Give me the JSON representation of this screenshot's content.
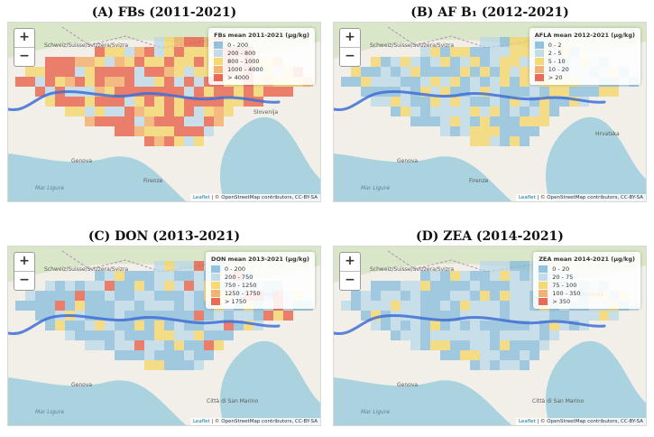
{
  "colors": {
    "water": "#aad3df",
    "land": "#f2efe9",
    "land_alt": "#e9e6d8",
    "forest": "#cfe3b8",
    "river": "#3e6fd6",
    "border": "#b08fb8",
    "blue": "#7fb8d9",
    "lightblue": "#b7d7e8",
    "yellow": "#f4d35e",
    "orange": "#f2a65a",
    "red": "#e8503a"
  },
  "zoom": {
    "in": "+",
    "out": "−"
  },
  "attribution": {
    "leaflet": "Leaflet",
    "rest": " | © OpenStreetMap contributors, CC-BY-SA"
  },
  "places": {
    "schweiz": "Schweiz/Suisse/Svizzera/Svizra",
    "slovenija": "Slovenija",
    "hrvatska": "Hrvatska",
    "trieste": "Trieste",
    "genova": "Genova",
    "monaco": "Monaco",
    "firenze": "Firenze",
    "sanmarino": "Città di San Marino",
    "mare": "Mar Ligure"
  },
  "panels": [
    {
      "id": "A",
      "title": "(A) FBs (2011-2021)",
      "legend_title": "FBs mean 2011-2021 (µg/kg)",
      "legend": [
        {
          "label": "0 - 200",
          "color": "#7fb8d9"
        },
        {
          "label": "200 - 800",
          "color": "#b7d7e8"
        },
        {
          "label": "800 - 1000",
          "color": "#f4d35e"
        },
        {
          "label": "1000 - 4000",
          "color": "#f2a65a"
        },
        {
          "label": "> 4000",
          "color": "#e8503a"
        }
      ]
    },
    {
      "id": "B",
      "title": "(B) AF B₁ (2012-2021)",
      "legend_title": "AFLA mean 2012-2021 (µg/kg)",
      "legend": [
        {
          "label": "0 - 2",
          "color": "#7fb8d9"
        },
        {
          "label": "2 - 5",
          "color": "#b7d7e8"
        },
        {
          "label": "5 - 10",
          "color": "#f4d35e"
        },
        {
          "label": "10 - 20",
          "color": "#f2a65a"
        },
        {
          "label": "> 20",
          "color": "#e8503a"
        }
      ]
    },
    {
      "id": "C",
      "title": "(C) DON (2013-2021)",
      "legend_title": "DON mean 2013-2021 (µg/kg)",
      "legend": [
        {
          "label": "0 - 200",
          "color": "#7fb8d9"
        },
        {
          "label": "200 - 750",
          "color": "#b7d7e8"
        },
        {
          "label": "750 - 1250",
          "color": "#f4d35e"
        },
        {
          "label": "1250 - 1750",
          "color": "#f2a65a"
        },
        {
          "label": "> 1750",
          "color": "#e8503a"
        }
      ]
    },
    {
      "id": "D",
      "title": "(D) ZEA (2014-2021)",
      "legend_title": "ZEA mean 2014-2021 (µg/kg)",
      "legend": [
        {
          "label": "0 - 20",
          "color": "#7fb8d9"
        },
        {
          "label": "20 - 75",
          "color": "#b7d7e8"
        },
        {
          "label": "75 - 100",
          "color": "#f4d35e"
        },
        {
          "label": "100 - 350",
          "color": "#f2a65a"
        },
        {
          "label": "> 350",
          "color": "#e8503a"
        }
      ]
    }
  ]
}
